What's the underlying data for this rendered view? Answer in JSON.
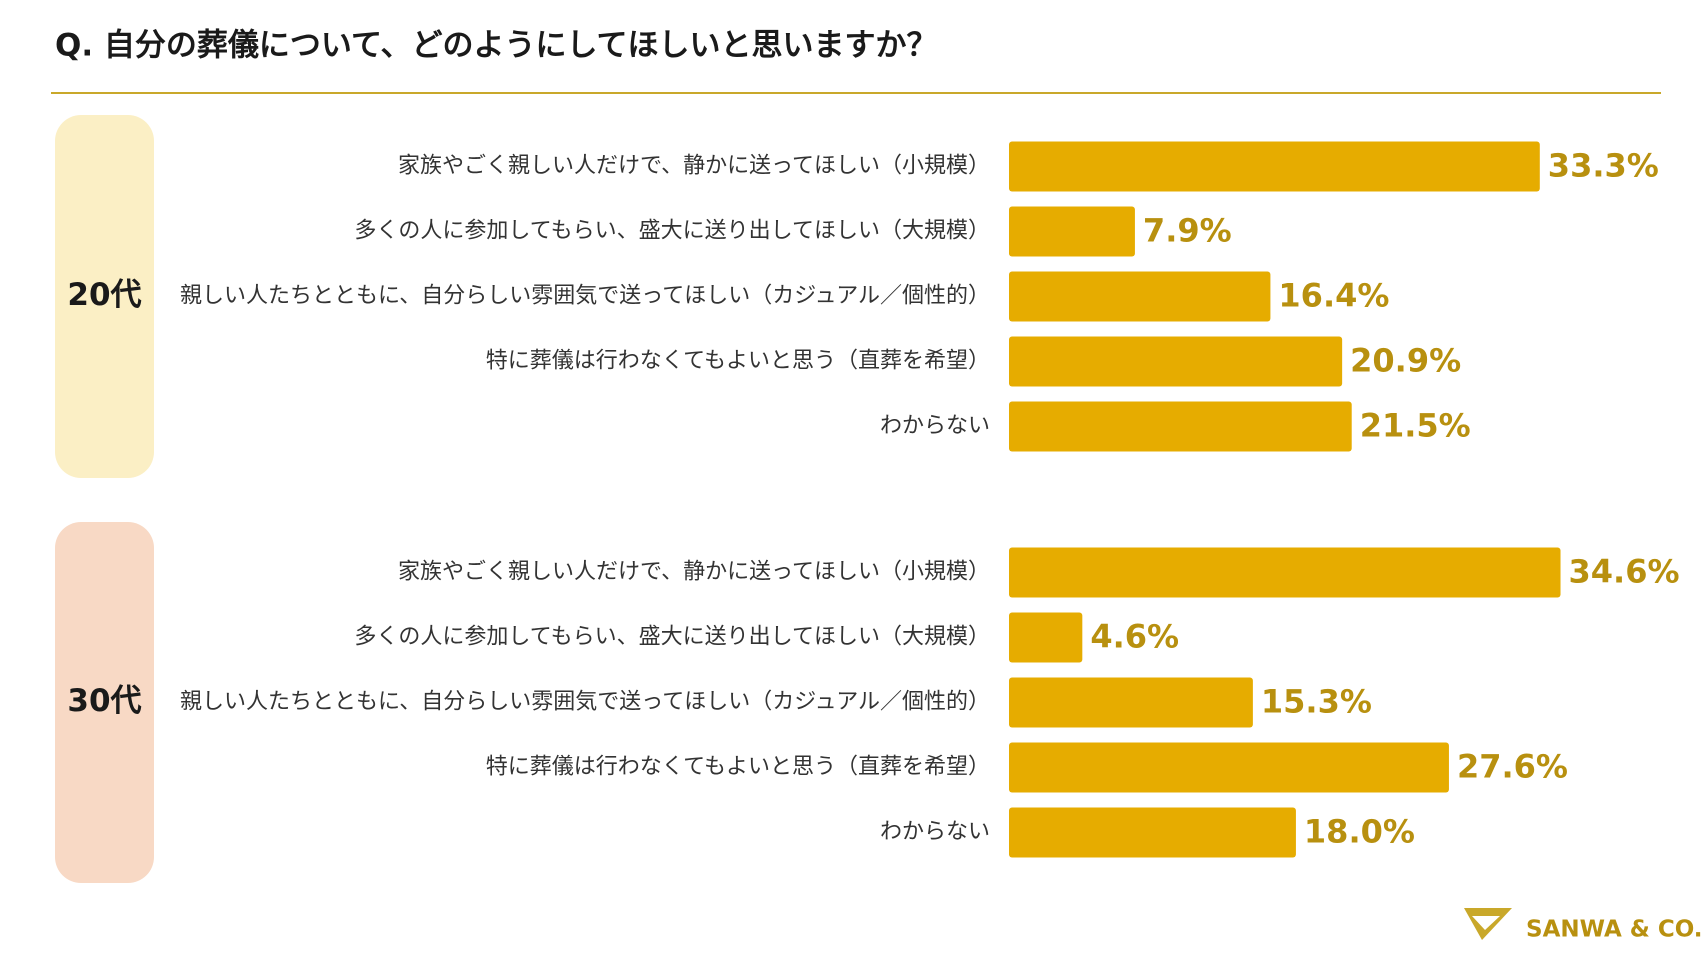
{
  "title": "Q. 自分の葬儀について、どのようにしてほしいと思いますか？",
  "logo": "SANWA & CO.",
  "chart_data": [
    {
      "type": "bar",
      "title": "20代",
      "color": "#e6ac00",
      "box_color": "#fbefc5",
      "categories": [
        "家族やごく親しい人だけで、静かに送ってほしい（小規模）",
        "多くの人に参加してもらい、盛大に送り出してほしい（大規模）",
        "親しい人たちとともに、自分らしい雰囲気で送ってほしい（カジュアル／個性的）",
        "特に葬儀は行わなくてもよいと思う（直葬を希望）",
        "わからない"
      ],
      "values": [
        33.3,
        7.9,
        16.4,
        20.9,
        21.5
      ],
      "value_labels": [
        "33.3%",
        "7.9%",
        "16.4%",
        "20.9%",
        "21.5%"
      ]
    },
    {
      "type": "bar",
      "title": "30代",
      "color": "#e6ac00",
      "box_color": "#f8d9c5",
      "categories": [
        "家族やごく親しい人だけで、静かに送ってほしい（小規模）",
        "多くの人に参加してもらい、盛大に送り出してほしい（大規模）",
        "親しい人たちとともに、自分らしい雰囲気で送ってほしい（カジュアル／個性的）",
        "特に葬儀は行わなくてもよいと思う（直葬を希望）",
        "わからない"
      ],
      "values": [
        34.6,
        4.6,
        15.3,
        27.6,
        18.0
      ],
      "value_labels": [
        "34.6%",
        "4.6%",
        "15.3%",
        "27.6%",
        "18.0%"
      ]
    }
  ]
}
